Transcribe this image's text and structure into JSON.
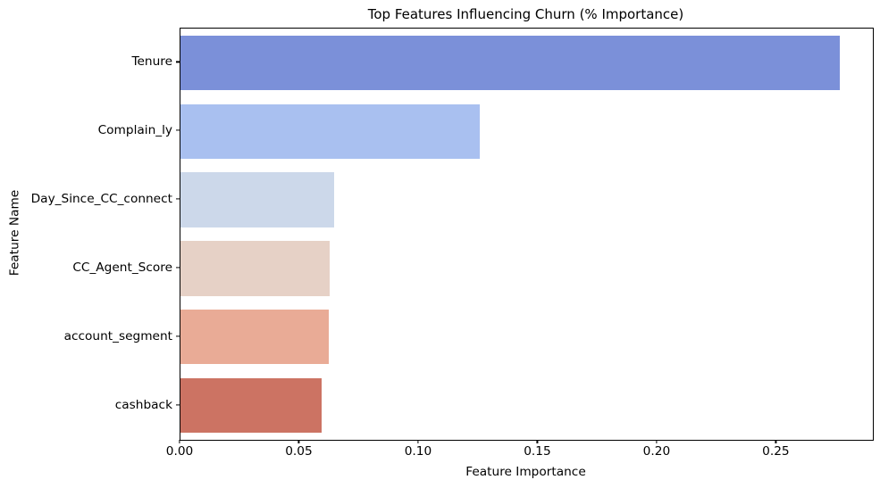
{
  "chart_data": {
    "type": "bar",
    "orientation": "horizontal",
    "title": "Top Features Influencing Churn (% Importance)",
    "xlabel": "Feature Importance",
    "ylabel": "Feature Name",
    "categories": [
      "Tenure",
      "Complain_ly",
      "Day_Since_CC_connect",
      "CC_Agent_Score",
      "account_segment",
      "cashback"
    ],
    "values": [
      0.2765,
      0.1256,
      0.0644,
      0.0625,
      0.0621,
      0.0593
    ],
    "bar_colors": [
      "#7b90d9",
      "#a9c0f0",
      "#ccd8ea",
      "#e6d1c6",
      "#e9ab96",
      "#cc7363"
    ],
    "xlim": [
      0,
      0.2903
    ],
    "x_ticks": [
      0,
      0.05,
      0.1,
      0.15,
      0.2,
      0.25
    ],
    "x_tick_labels": [
      "0.00",
      "0.05",
      "0.10",
      "0.15",
      "0.20",
      "0.25"
    ],
    "grid": false,
    "legend": null,
    "bar_fraction_of_slot": 0.8
  },
  "style": {
    "background": "#ffffff",
    "spine_color": "#000000",
    "text_color": "#000000"
  }
}
